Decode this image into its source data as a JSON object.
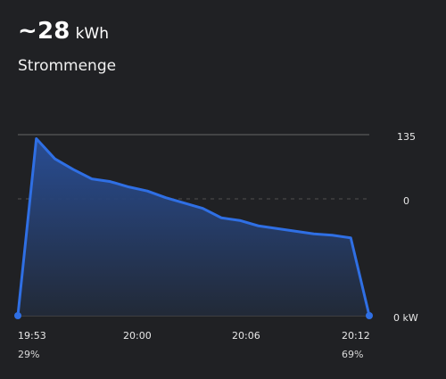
{
  "header": {
    "value": "~28",
    "unit": "kWh",
    "subtitle": "Strommenge"
  },
  "colors": {
    "background": "#202124",
    "line": "#2f6fe4",
    "area_top": "#294f99",
    "area_bottom": "#222a38",
    "grid": "#666666"
  },
  "chart_data": {
    "type": "area",
    "x": [
      "19:53",
      "19:54",
      "19:55",
      "19:56",
      "19:57",
      "19:58",
      "19:59",
      "20:00",
      "20:01",
      "20:02",
      "20:03",
      "20:04",
      "20:05",
      "20:06",
      "20:07",
      "20:08",
      "20:09",
      "20:10",
      "20:11",
      "20:12"
    ],
    "values": [
      0,
      132,
      117,
      109,
      102,
      100,
      96,
      93,
      88,
      84,
      80,
      73,
      71,
      67,
      65,
      63,
      61,
      60,
      58,
      0
    ],
    "right_axis": {
      "ticks": [
        "135",
        "0",
        "0 kW"
      ],
      "ylim": [
        0,
        135
      ]
    },
    "x_tick_labels": [
      "19:53",
      "20:00",
      "20:06",
      "20:12"
    ],
    "bottom_labels": [
      "29%",
      "69%"
    ],
    "gridlines": true,
    "legend": "none"
  }
}
